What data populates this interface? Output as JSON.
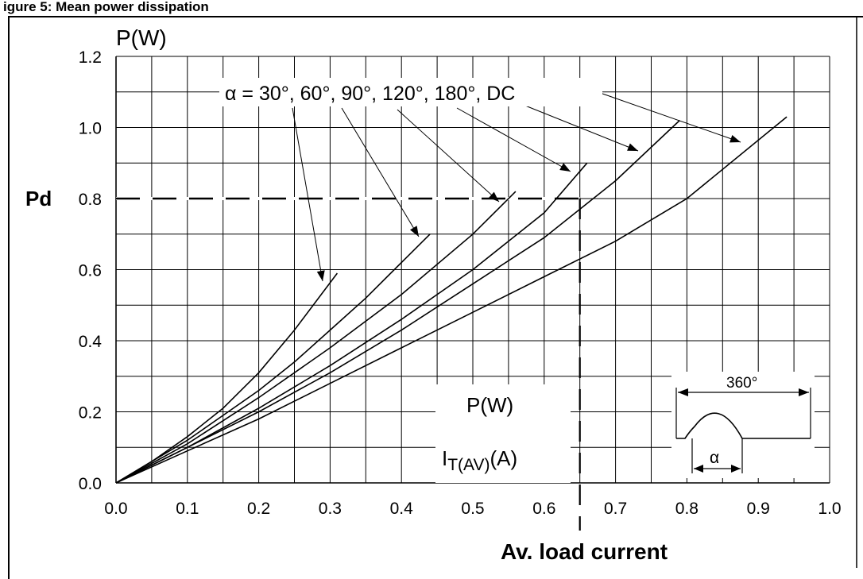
{
  "chart_data": {
    "type": "line",
    "header_fragment": "igure 5: Mean power dissipation",
    "y_unit_label": "P(W)",
    "xlabel": "Av. load current",
    "marker_label": "Pd",
    "alpha_label": "α = 30°, 60°, 90°, 120°, 180°, DC",
    "inset_power_label": "P(W)",
    "inset_current_label_main": "I",
    "inset_current_label_sub": "T(AV)",
    "inset_current_label_unit": "(A)",
    "waveform_period_label": "360°",
    "waveform_alpha_label": "α",
    "xlim": [
      0,
      1.0
    ],
    "ylim": [
      0,
      1.2
    ],
    "x_ticks": [
      "0.0",
      "0.1",
      "0.2",
      "0.3",
      "0.4",
      "0.5",
      "0.6",
      "0.7",
      "0.8",
      "0.9",
      "1.0"
    ],
    "y_ticks": [
      "0.0",
      "0.2",
      "0.4",
      "0.6",
      "0.8",
      "1.0",
      "1.2"
    ],
    "x_tick_values": [
      0,
      0.1,
      0.2,
      0.3,
      0.4,
      0.5,
      0.6,
      0.7,
      0.8,
      0.9,
      1.0
    ],
    "y_tick_values": [
      0,
      0.2,
      0.4,
      0.6,
      0.8,
      1.0,
      1.2
    ],
    "grid": true,
    "reference_lines": {
      "pd": 0.8,
      "current": 0.65
    },
    "series": [
      {
        "x": [
          0,
          0.05,
          0.1,
          0.15,
          0.2,
          0.25,
          0.31
        ],
        "y": [
          0,
          0.06,
          0.13,
          0.21,
          0.31,
          0.43,
          0.59
        ]
      },
      {
        "x": [
          0,
          0.05,
          0.1,
          0.15,
          0.2,
          0.25,
          0.3,
          0.35,
          0.4,
          0.44
        ],
        "y": [
          0,
          0.06,
          0.12,
          0.19,
          0.26,
          0.34,
          0.43,
          0.52,
          0.62,
          0.7
        ]
      },
      {
        "x": [
          0,
          0.1,
          0.2,
          0.3,
          0.4,
          0.5,
          0.56
        ],
        "y": [
          0,
          0.11,
          0.24,
          0.38,
          0.53,
          0.7,
          0.82
        ]
      },
      {
        "x": [
          0,
          0.1,
          0.2,
          0.3,
          0.4,
          0.5,
          0.6,
          0.66
        ],
        "y": [
          0,
          0.1,
          0.21,
          0.33,
          0.46,
          0.6,
          0.76,
          0.9
        ]
      },
      {
        "x": [
          0,
          0.1,
          0.2,
          0.3,
          0.4,
          0.5,
          0.6,
          0.7,
          0.79
        ],
        "y": [
          0,
          0.1,
          0.2,
          0.31,
          0.43,
          0.56,
          0.69,
          0.85,
          1.02
        ]
      },
      {
        "x": [
          0,
          0.1,
          0.2,
          0.3,
          0.4,
          0.5,
          0.6,
          0.7,
          0.8,
          0.94
        ],
        "y": [
          0,
          0.09,
          0.18,
          0.28,
          0.38,
          0.48,
          0.58,
          0.68,
          0.8,
          1.03
        ]
      }
    ]
  }
}
